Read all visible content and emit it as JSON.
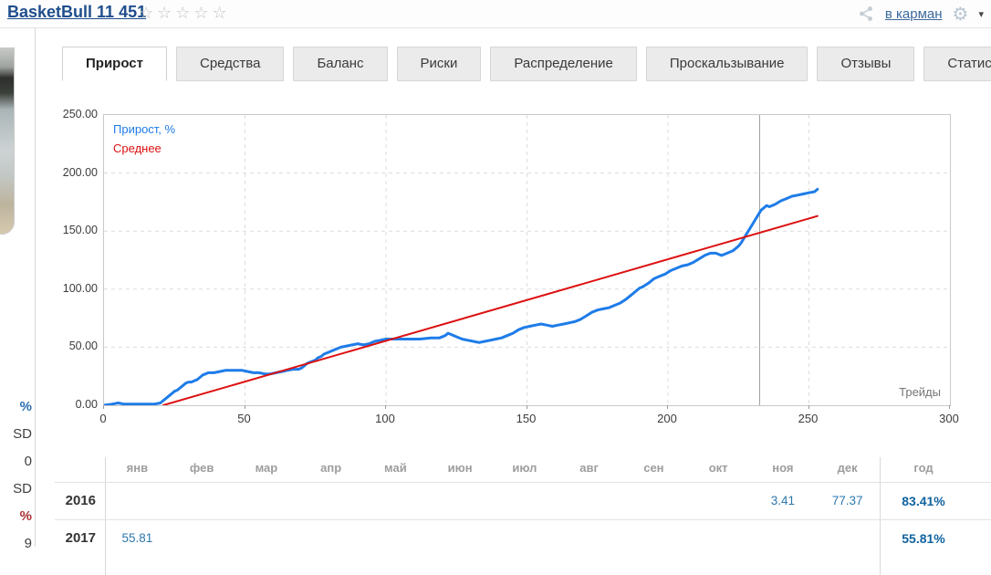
{
  "header": {
    "title": "BasketBull 11 451",
    "rating_stars": 5,
    "pocket_link": "в карман"
  },
  "sidebar": {
    "stat_fragments": [
      {
        "text": "%",
        "style": "accent-blue"
      },
      {
        "text": "SD",
        "style": "plain"
      },
      {
        "text": "0",
        "style": "plain"
      },
      {
        "text": "SD",
        "style": "plain"
      },
      {
        "text": "%",
        "style": "accent-red"
      },
      {
        "text": "9",
        "style": "plain"
      }
    ]
  },
  "tabs": [
    {
      "label": "Прирост",
      "active": true
    },
    {
      "label": "Средства",
      "active": false
    },
    {
      "label": "Баланс",
      "active": false
    },
    {
      "label": "Риски",
      "active": false
    },
    {
      "label": "Распределение",
      "active": false
    },
    {
      "label": "Проскальзывание",
      "active": false
    },
    {
      "label": "Отзывы",
      "active": false
    },
    {
      "label": "Статистика",
      "active": false
    }
  ],
  "chart_data": {
    "type": "line",
    "title": "",
    "xlabel": "Трейды",
    "ylabel": "",
    "xlim": [
      0,
      300
    ],
    "ylim": [
      0,
      250
    ],
    "x_ticks": [
      0,
      50,
      100,
      150,
      200,
      250,
      300
    ],
    "x_tick_labels": [
      "0",
      "50",
      "100",
      "150",
      "200",
      "250",
      "300"
    ],
    "y_ticks": [
      0,
      50,
      100,
      150,
      200,
      250
    ],
    "y_tick_labels": [
      "0.00",
      "50.00",
      "100.00",
      "150.00",
      "200.00",
      "250.00"
    ],
    "grid": "dashed",
    "legend_position": "top-left",
    "marker_line_x": 232.5,
    "grid_color": "#dcdcdc",
    "marker_color": "#9a9a9a",
    "series": [
      {
        "name": "Прирост, %",
        "color": "#1e7ce8",
        "width": 3,
        "points": [
          [
            0,
            0
          ],
          [
            3,
            1
          ],
          [
            5,
            2
          ],
          [
            7,
            1
          ],
          [
            9,
            1
          ],
          [
            12,
            1
          ],
          [
            15,
            1
          ],
          [
            18,
            1
          ],
          [
            20,
            2
          ],
          [
            21,
            4
          ],
          [
            22,
            6
          ],
          [
            23,
            8
          ],
          [
            24,
            10
          ],
          [
            25,
            12
          ],
          [
            26,
            13
          ],
          [
            27,
            15
          ],
          [
            28,
            17
          ],
          [
            29,
            19
          ],
          [
            30,
            20
          ],
          [
            31,
            20
          ],
          [
            32,
            21
          ],
          [
            33,
            22
          ],
          [
            34,
            24
          ],
          [
            35,
            26
          ],
          [
            36,
            27
          ],
          [
            37,
            28
          ],
          [
            39,
            28
          ],
          [
            41,
            29
          ],
          [
            43,
            30
          ],
          [
            45,
            30
          ],
          [
            47,
            30
          ],
          [
            49,
            30
          ],
          [
            51,
            29
          ],
          [
            53,
            28
          ],
          [
            55,
            28
          ],
          [
            57,
            27
          ],
          [
            59,
            27
          ],
          [
            61,
            28
          ],
          [
            63,
            29
          ],
          [
            65,
            30
          ],
          [
            67,
            31
          ],
          [
            69,
            31
          ],
          [
            70,
            32
          ],
          [
            71,
            34
          ],
          [
            72,
            36
          ],
          [
            73,
            37
          ],
          [
            74,
            38
          ],
          [
            75,
            39
          ],
          [
            76,
            41
          ],
          [
            77,
            42
          ],
          [
            78,
            44
          ],
          [
            80,
            46
          ],
          [
            82,
            48
          ],
          [
            84,
            50
          ],
          [
            86,
            51
          ],
          [
            88,
            52
          ],
          [
            90,
            53
          ],
          [
            92,
            52
          ],
          [
            94,
            53
          ],
          [
            96,
            55
          ],
          [
            98,
            56
          ],
          [
            100,
            57
          ],
          [
            104,
            57
          ],
          [
            108,
            57
          ],
          [
            112,
            57
          ],
          [
            116,
            58
          ],
          [
            119,
            58
          ],
          [
            121,
            60
          ],
          [
            122,
            62
          ],
          [
            123,
            61
          ],
          [
            125,
            59
          ],
          [
            127,
            57
          ],
          [
            129,
            56
          ],
          [
            131,
            55
          ],
          [
            133,
            54
          ],
          [
            135,
            55
          ],
          [
            137,
            56
          ],
          [
            139,
            57
          ],
          [
            141,
            58
          ],
          [
            143,
            60
          ],
          [
            145,
            62
          ],
          [
            147,
            65
          ],
          [
            149,
            67
          ],
          [
            151,
            68
          ],
          [
            153,
            69
          ],
          [
            155,
            70
          ],
          [
            157,
            69
          ],
          [
            159,
            68
          ],
          [
            161,
            69
          ],
          [
            163,
            70
          ],
          [
            165,
            71
          ],
          [
            167,
            72
          ],
          [
            169,
            74
          ],
          [
            171,
            77
          ],
          [
            173,
            80
          ],
          [
            175,
            82
          ],
          [
            177,
            83
          ],
          [
            179,
            84
          ],
          [
            181,
            86
          ],
          [
            183,
            88
          ],
          [
            185,
            91
          ],
          [
            187,
            95
          ],
          [
            188,
            97
          ],
          [
            189,
            99
          ],
          [
            190,
            101
          ],
          [
            191,
            102
          ],
          [
            193,
            105
          ],
          [
            195,
            109
          ],
          [
            197,
            111
          ],
          [
            199,
            113
          ],
          [
            201,
            116
          ],
          [
            203,
            118
          ],
          [
            205,
            120
          ],
          [
            207,
            121
          ],
          [
            209,
            123
          ],
          [
            211,
            126
          ],
          [
            213,
            129
          ],
          [
            214,
            130
          ],
          [
            215,
            131
          ],
          [
            217,
            131
          ],
          [
            218,
            130
          ],
          [
            219,
            129
          ],
          [
            221,
            131
          ],
          [
            223,
            133
          ],
          [
            225,
            137
          ],
          [
            226,
            140
          ],
          [
            227,
            144
          ],
          [
            228,
            148
          ],
          [
            229,
            152
          ],
          [
            230,
            156
          ],
          [
            231,
            160
          ],
          [
            232,
            164
          ],
          [
            233,
            168
          ],
          [
            234,
            170
          ],
          [
            235,
            172
          ],
          [
            236,
            171
          ],
          [
            238,
            173
          ],
          [
            240,
            176
          ],
          [
            242,
            178
          ],
          [
            244,
            180
          ],
          [
            246,
            181
          ],
          [
            248,
            182
          ],
          [
            250,
            183
          ],
          [
            252,
            184
          ],
          [
            253,
            186
          ]
        ]
      },
      {
        "name": "Среднее",
        "color": "#dd1111",
        "width": 2,
        "points": [
          [
            21,
            0
          ],
          [
            253,
            163
          ]
        ]
      }
    ]
  },
  "monthly_table": {
    "months": [
      "янв",
      "фев",
      "мар",
      "апр",
      "май",
      "июн",
      "июл",
      "авг",
      "сен",
      "окт",
      "ноя",
      "дек"
    ],
    "year_header": "год",
    "rows": [
      {
        "year": "2016",
        "values": [
          "",
          "",
          "",
          "",
          "",
          "",
          "",
          "",
          "",
          "",
          "3.41",
          "77.37"
        ],
        "total": "83.41%"
      },
      {
        "year": "2017",
        "values": [
          "55.81",
          "",
          "",
          "",
          "",
          "",
          "",
          "",
          "",
          "",
          "",
          ""
        ],
        "total": "55.81%"
      }
    ]
  }
}
